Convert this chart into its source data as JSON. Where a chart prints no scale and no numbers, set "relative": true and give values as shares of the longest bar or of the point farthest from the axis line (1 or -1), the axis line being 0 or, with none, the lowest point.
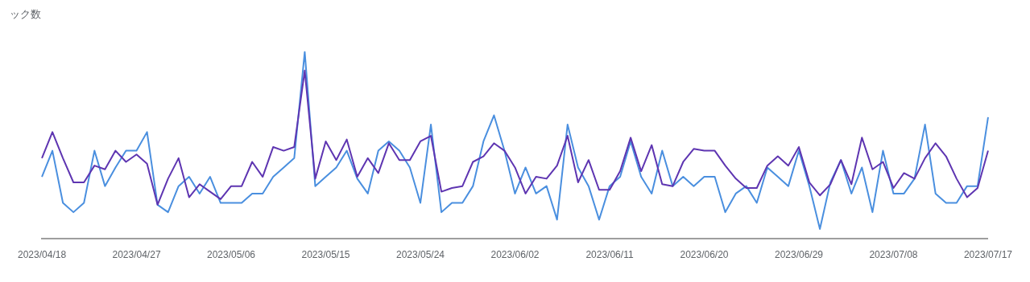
{
  "chart_data": {
    "type": "line",
    "annotations": [
      "ック数"
    ],
    "relative": true,
    "legend": false,
    "marker": "none",
    "line_style": "solid",
    "categories": [
      "2023/04/18",
      null,
      null,
      null,
      null,
      null,
      null,
      null,
      null,
      "2023/04/27",
      null,
      null,
      null,
      null,
      null,
      null,
      null,
      null,
      "2023/05/06",
      null,
      null,
      null,
      null,
      null,
      null,
      null,
      null,
      "2023/05/15",
      null,
      null,
      null,
      null,
      null,
      null,
      null,
      null,
      "2023/05/24",
      null,
      null,
      null,
      null,
      null,
      null,
      null,
      null,
      "2023/06/02",
      null,
      null,
      null,
      null,
      null,
      null,
      null,
      null,
      "2023/06/11",
      null,
      null,
      null,
      null,
      null,
      null,
      null,
      null,
      "2023/06/20",
      null,
      null,
      null,
      null,
      null,
      null,
      null,
      null,
      "2023/06/29",
      null,
      null,
      null,
      null,
      null,
      null,
      null,
      null,
      "2023/07/08",
      null,
      null,
      null,
      null,
      null,
      null,
      null,
      null,
      "2023/07/17"
    ],
    "series": [
      {
        "color": "#5e35b1",
        "values": [
          0.43,
          0.57,
          0.43,
          0.3,
          0.3,
          0.39,
          0.37,
          0.47,
          0.41,
          0.45,
          0.4,
          0.18,
          0.32,
          0.43,
          0.22,
          0.29,
          0.25,
          0.21,
          0.28,
          0.28,
          0.41,
          0.33,
          0.49,
          0.47,
          0.49,
          0.9,
          0.32,
          0.52,
          0.42,
          0.53,
          0.33,
          0.43,
          0.35,
          0.51,
          0.42,
          0.42,
          0.52,
          0.55,
          0.25,
          0.27,
          0.28,
          0.41,
          0.44,
          0.51,
          0.47,
          0.38,
          0.24,
          0.33,
          0.32,
          0.39,
          0.55,
          0.3,
          0.42,
          0.26,
          0.26,
          0.36,
          0.54,
          0.36,
          0.5,
          0.29,
          0.28,
          0.41,
          0.48,
          0.47,
          0.47,
          0.39,
          0.32,
          0.27,
          0.27,
          0.39,
          0.44,
          0.39,
          0.49,
          0.3,
          0.23,
          0.29,
          0.42,
          0.29,
          0.54,
          0.37,
          0.41,
          0.27,
          0.35,
          0.32,
          0.43,
          0.51,
          0.44,
          0.32,
          0.22,
          0.27,
          0.47
        ]
      },
      {
        "color": "#4a8fdf",
        "values": [
          0.33,
          0.47,
          0.19,
          0.14,
          0.19,
          0.47,
          0.28,
          0.38,
          0.47,
          0.47,
          0.57,
          0.18,
          0.14,
          0.28,
          0.33,
          0.24,
          0.33,
          0.19,
          0.19,
          0.19,
          0.24,
          0.24,
          0.33,
          0.38,
          0.43,
          1.0,
          0.28,
          0.33,
          0.38,
          0.47,
          0.32,
          0.24,
          0.47,
          0.52,
          0.47,
          0.38,
          0.19,
          0.61,
          0.14,
          0.19,
          0.19,
          0.28,
          0.52,
          0.66,
          0.47,
          0.24,
          0.38,
          0.24,
          0.28,
          0.1,
          0.61,
          0.38,
          0.28,
          0.1,
          0.28,
          0.33,
          0.52,
          0.33,
          0.24,
          0.47,
          0.28,
          0.33,
          0.28,
          0.33,
          0.33,
          0.14,
          0.24,
          0.28,
          0.19,
          0.38,
          0.33,
          0.28,
          0.47,
          0.28,
          0.05,
          0.3,
          0.42,
          0.24,
          0.38,
          0.14,
          0.47,
          0.24,
          0.24,
          0.32,
          0.61,
          0.24,
          0.19,
          0.19,
          0.28,
          0.28,
          0.65
        ]
      }
    ]
  }
}
